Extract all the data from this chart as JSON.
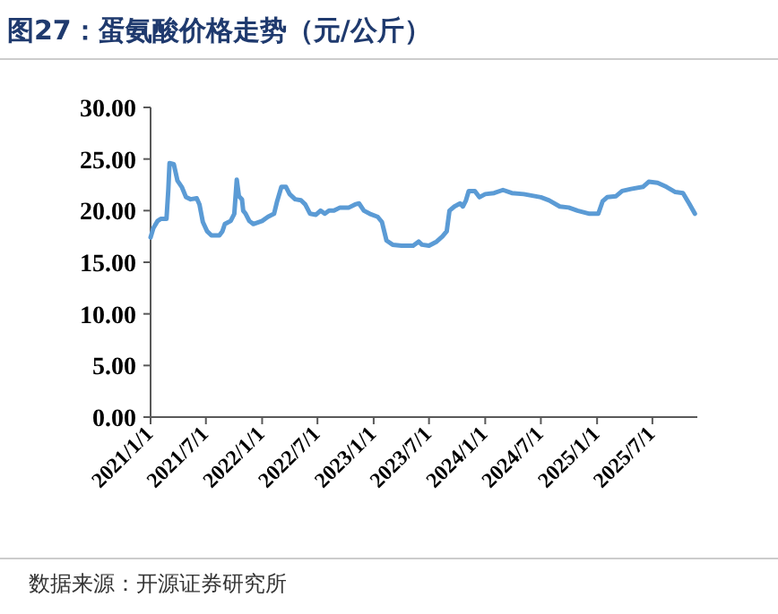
{
  "chart_data": {
    "type": "line",
    "title": "图27：蛋氨酸价格走势（元/公斤）",
    "annotations": [
      "数据来源：开源证券研究所"
    ],
    "x": [
      "2021-01-01",
      "2021-01-10",
      "2021-01-24",
      "2021-02-03",
      "2021-02-22",
      "2021-02-28",
      "2021-03-04",
      "2021-03-18",
      "2021-03-30",
      "2021-04-13",
      "2021-04-27",
      "2021-05-12",
      "2021-06-01",
      "2021-06-10",
      "2021-06-21",
      "2021-07-05",
      "2021-07-19",
      "2021-08-14",
      "2021-08-24",
      "2021-09-01",
      "2021-09-20",
      "2021-10-02",
      "2021-10-10",
      "2021-10-17",
      "2021-10-27",
      "2021-10-31",
      "2021-11-08",
      "2021-11-20",
      "2021-12-03",
      "2022-01-01",
      "2022-01-20",
      "2022-02-09",
      "2022-02-19",
      "2022-03-05",
      "2022-03-20",
      "2022-04-01",
      "2022-04-19",
      "2022-05-08",
      "2022-05-22",
      "2022-06-07",
      "2022-06-26",
      "2022-07-11",
      "2022-07-25",
      "2022-08-08",
      "2022-08-24",
      "2022-09-13",
      "2022-10-12",
      "2022-11-01",
      "2022-11-14",
      "2022-11-30",
      "2022-12-19",
      "2023-01-14",
      "2023-01-28",
      "2023-02-12",
      "2023-03-04",
      "2023-04-02",
      "2023-05-10",
      "2023-05-28",
      "2023-06-08",
      "2023-07-01",
      "2023-07-26",
      "2023-08-14",
      "2023-08-28",
      "2023-09-06",
      "2023-09-22",
      "2023-10-11",
      "2023-10-20",
      "2023-10-30",
      "2023-11-08",
      "2023-11-28",
      "2023-12-13",
      "2024-01-01",
      "2024-01-30",
      "2024-02-28",
      "2024-03-28",
      "2024-05-06",
      "2024-07-01",
      "2024-07-28",
      "2024-09-01",
      "2024-09-30",
      "2024-10-29",
      "2024-12-07",
      "2025-01-05",
      "2025-01-19",
      "2025-02-03",
      "2025-03-04",
      "2025-03-24",
      "2025-04-22",
      "2025-05-31",
      "2025-06-19",
      "2025-07-18",
      "2025-08-16",
      "2025-09-14",
      "2025-10-09",
      "2025-10-29",
      "2025-11-17"
    ],
    "series": [
      {
        "color": "#5b9bd5",
        "values": [
          17.4,
          18.3,
          19.0,
          19.2,
          19.2,
          22.0,
          24.6,
          24.5,
          22.9,
          22.3,
          21.3,
          21.1,
          21.2,
          20.6,
          18.9,
          18.0,
          17.6,
          17.6,
          18.0,
          18.7,
          19.0,
          19.7,
          23.0,
          21.4,
          21.1,
          20.0,
          19.7,
          19.0,
          18.7,
          19.0,
          19.4,
          19.7,
          20.9,
          22.3,
          22.3,
          21.6,
          21.1,
          21.0,
          20.6,
          19.7,
          19.6,
          20.0,
          19.7,
          20.0,
          20.0,
          20.3,
          20.3,
          20.6,
          20.7,
          20.0,
          19.7,
          19.4,
          18.9,
          17.1,
          16.7,
          16.6,
          16.6,
          17.0,
          16.7,
          16.6,
          17.0,
          17.5,
          18.0,
          20.0,
          20.4,
          20.7,
          20.4,
          21.0,
          21.9,
          21.9,
          21.3,
          21.6,
          21.7,
          22.0,
          21.7,
          21.6,
          21.3,
          21.0,
          20.4,
          20.3,
          20.0,
          19.7,
          19.7,
          20.9,
          21.3,
          21.4,
          21.9,
          22.1,
          22.3,
          22.8,
          22.7,
          22.3,
          21.8,
          21.7,
          20.7,
          19.7
        ]
      }
    ],
    "xlim": [
      "2021-01-01",
      "2025-11-25"
    ],
    "xticks": [
      {
        "value": "2021-01-01",
        "label": "2021/1/1"
      },
      {
        "value": "2021-07-01",
        "label": "2021/7/1"
      },
      {
        "value": "2022-01-01",
        "label": "2022/1/1"
      },
      {
        "value": "2022-07-01",
        "label": "2022/7/1"
      },
      {
        "value": "2023-01-01",
        "label": "2023/1/1"
      },
      {
        "value": "2023-07-01",
        "label": "2023/7/1"
      },
      {
        "value": "2024-01-01",
        "label": "2024/1/1"
      },
      {
        "value": "2024-07-01",
        "label": "2024/7/1"
      },
      {
        "value": "2025-01-01",
        "label": "2025/1/1"
      },
      {
        "value": "2025-07-01",
        "label": "2025/7/1"
      }
    ],
    "ylim": [
      0,
      30
    ],
    "yticks": [
      {
        "value": 0,
        "label": "0.00"
      },
      {
        "value": 5,
        "label": "5.00"
      },
      {
        "value": 10,
        "label": "10.00"
      },
      {
        "value": 15,
        "label": "15.00"
      },
      {
        "value": 20,
        "label": "20.00"
      },
      {
        "value": 25,
        "label": "25.00"
      },
      {
        "value": 30,
        "label": "30.00"
      }
    ],
    "grid": false,
    "marker": "none",
    "line_style": "solid"
  }
}
